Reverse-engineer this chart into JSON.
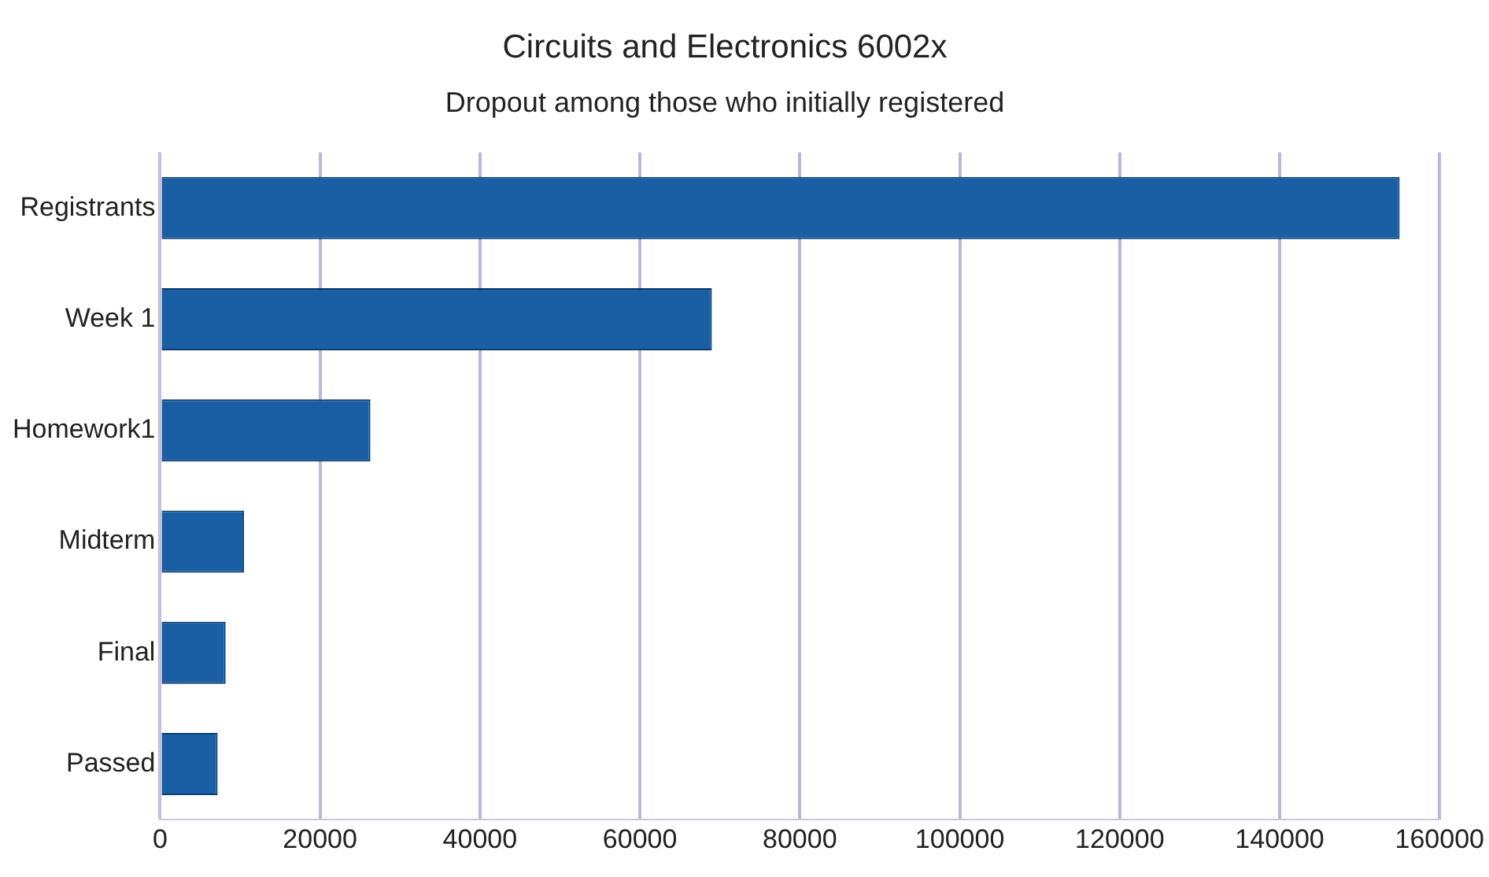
{
  "chart_data": {
    "type": "bar",
    "orientation": "horizontal",
    "title": "Circuits and Electronics 6002x",
    "subtitle": "Dropout among those who initially registered",
    "categories": [
      "Registrants",
      "Week 1",
      "Homework1",
      "Midterm",
      "Final",
      "Passed"
    ],
    "values": [
      155000,
      69000,
      26300,
      10500,
      8200,
      7200
    ],
    "color": "#1a5fa3",
    "xlim": [
      0,
      160000
    ],
    "xticks": [
      0,
      20000,
      40000,
      60000,
      80000,
      100000,
      120000,
      140000,
      160000
    ],
    "grid": "x",
    "legend": false
  }
}
